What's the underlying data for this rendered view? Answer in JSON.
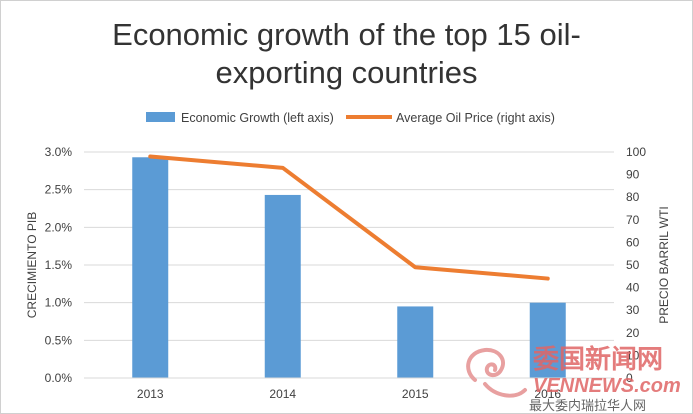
{
  "chart_data": {
    "type": "bar",
    "title_line1": "Economic growth of the top 15 oil-",
    "title_line2": "exporting countries",
    "categories": [
      "2013",
      "2014",
      "2015",
      "2016"
    ],
    "series": [
      {
        "name": "Economic Growth (left axis)",
        "kind": "bar",
        "axis": "left",
        "values": [
          2.93,
          2.43,
          0.95,
          1.0
        ],
        "color": "#5b9bd5"
      },
      {
        "name": "Average Oil Price (right axis)",
        "kind": "line",
        "axis": "right",
        "values": [
          98,
          93,
          49,
          44
        ],
        "color": "#ed7d31"
      }
    ],
    "ylabel": "CRECIMIENTO PIB",
    "y2label": "PRECIO BARRIL WTI",
    "ylim": [
      0,
      3.0
    ],
    "y2lim": [
      0,
      100
    ],
    "yticks": [
      "0.0%",
      "0.5%",
      "1.0%",
      "1.5%",
      "2.0%",
      "2.5%",
      "3.0%"
    ],
    "y2ticks": [
      "0",
      "10",
      "20",
      "30",
      "40",
      "50",
      "60",
      "70",
      "80",
      "90",
      "100"
    ],
    "grid": true,
    "legend_position": "top"
  },
  "watermark": {
    "logo_text": "委国新闻网",
    "domain_text": "VENNEWS.com",
    "subtitle": "最大委内瑞拉华人网"
  }
}
